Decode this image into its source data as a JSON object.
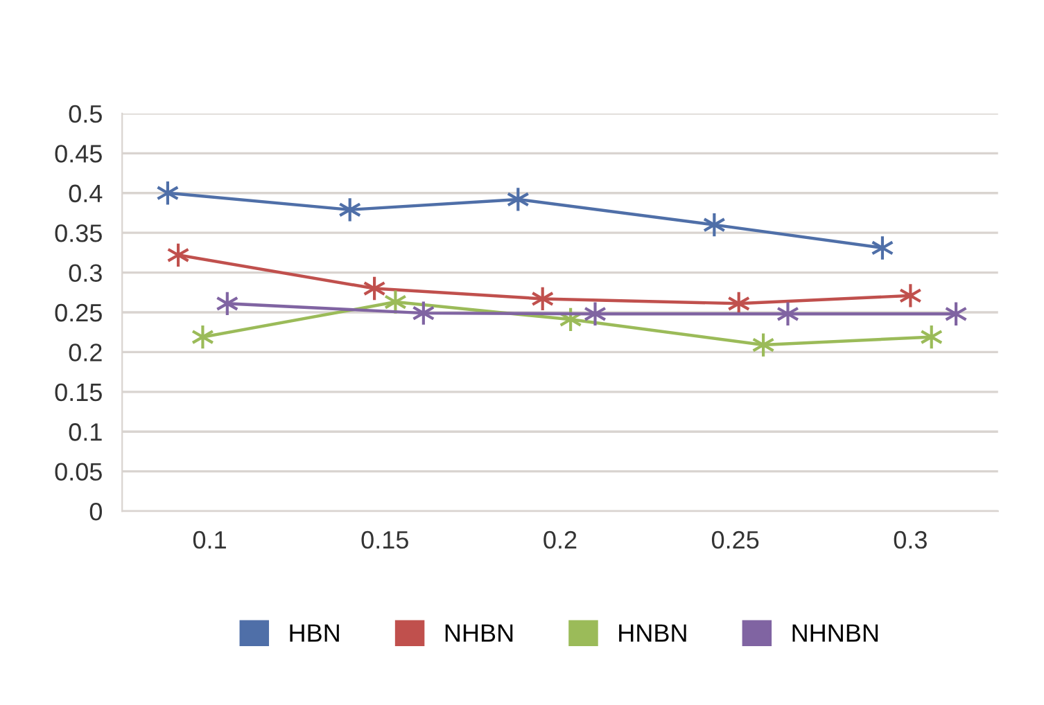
{
  "chart_data": {
    "type": "line",
    "series": [
      {
        "name": "HBN",
        "color": "#4f6fa8",
        "x": [
          0.088,
          0.14,
          0.188,
          0.244,
          0.292
        ],
        "values": [
          0.4,
          0.379,
          0.392,
          0.36,
          0.331
        ]
      },
      {
        "name": "NHBN",
        "color": "#c0504d",
        "x": [
          0.091,
          0.147,
          0.195,
          0.251,
          0.3
        ],
        "values": [
          0.322,
          0.28,
          0.267,
          0.261,
          0.271
        ]
      },
      {
        "name": "HNBN",
        "color": "#9bbb59",
        "x": [
          0.098,
          0.153,
          0.203,
          0.258,
          0.306
        ],
        "values": [
          0.219,
          0.263,
          0.241,
          0.209,
          0.219
        ]
      },
      {
        "name": "NHNBN",
        "color": "#8064a2",
        "x": [
          0.105,
          0.161,
          0.21,
          0.265,
          0.313
        ],
        "values": [
          0.261,
          0.249,
          0.248,
          0.248,
          0.248
        ]
      }
    ],
    "xlim": [
      0.075,
      0.325
    ],
    "xticks": [
      0.1,
      0.15,
      0.2,
      0.25,
      0.3
    ],
    "ylim": [
      0,
      0.5
    ],
    "yticks": [
      0,
      0.05,
      0.1,
      0.15,
      0.2,
      0.25,
      0.3,
      0.35,
      0.4,
      0.45,
      0.5
    ],
    "grid": "y",
    "legend": "bottom",
    "marker": "cross",
    "line_style": "solid"
  }
}
